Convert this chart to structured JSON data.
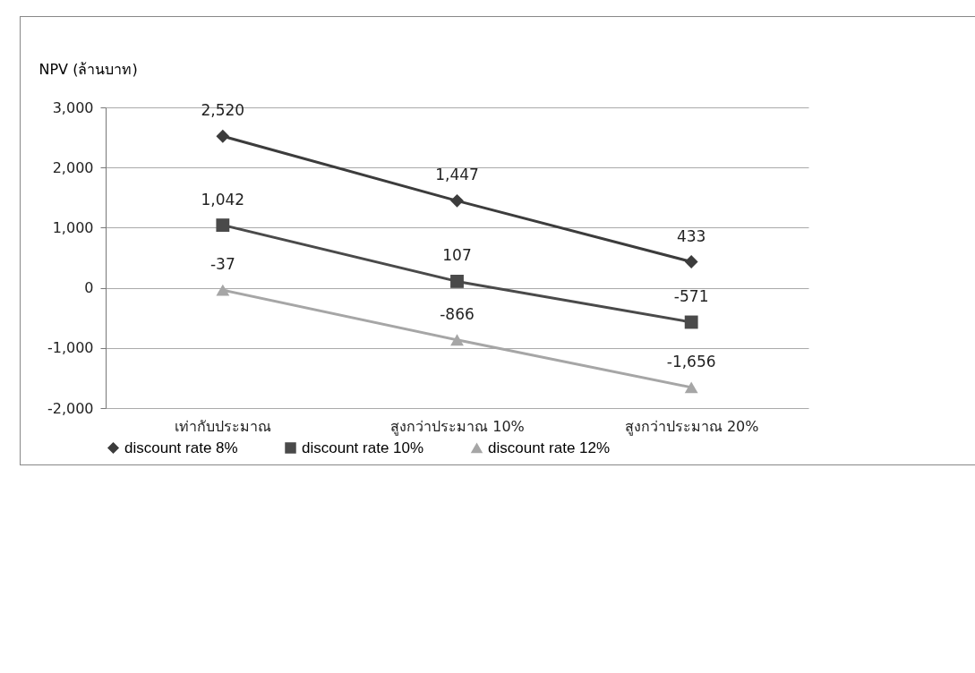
{
  "chart_data": {
    "type": "line",
    "ylabel": "NPV (ล้านบาท)",
    "categories": [
      "เท่ากับประมาณ",
      "สูงกว่าประมาณ 10%",
      "สูงกว่าประมาณ 20%"
    ],
    "series": [
      {
        "name": "discount rate 8%",
        "color": "#3c3c3c",
        "marker": "diamond",
        "values": [
          2520,
          1447,
          433
        ],
        "value_labels": [
          "2,520",
          "1,447",
          "433"
        ]
      },
      {
        "name": "discount rate 10%",
        "color": "#4a4a4a",
        "marker": "square",
        "values": [
          1042,
          107,
          -571
        ],
        "value_labels": [
          "1,042",
          "107",
          "-571"
        ]
      },
      {
        "name": "discount rate 12%",
        "color": "#a6a6a6",
        "marker": "triangle",
        "values": [
          -37,
          -866,
          -1656
        ],
        "value_labels": [
          "-37",
          "-866",
          "-1,656"
        ]
      }
    ],
    "ylim": [
      -2000,
      3000
    ],
    "yticks": [
      {
        "value": -2000,
        "label": "-2,000"
      },
      {
        "value": -1000,
        "label": "-1,000"
      },
      0,
      {
        "value": 1000,
        "label": "1,000"
      },
      {
        "value": 2000,
        "label": "2,000"
      },
      {
        "value": 3000,
        "label": "3,000"
      }
    ],
    "grid": "y",
    "legend": "bottom"
  }
}
